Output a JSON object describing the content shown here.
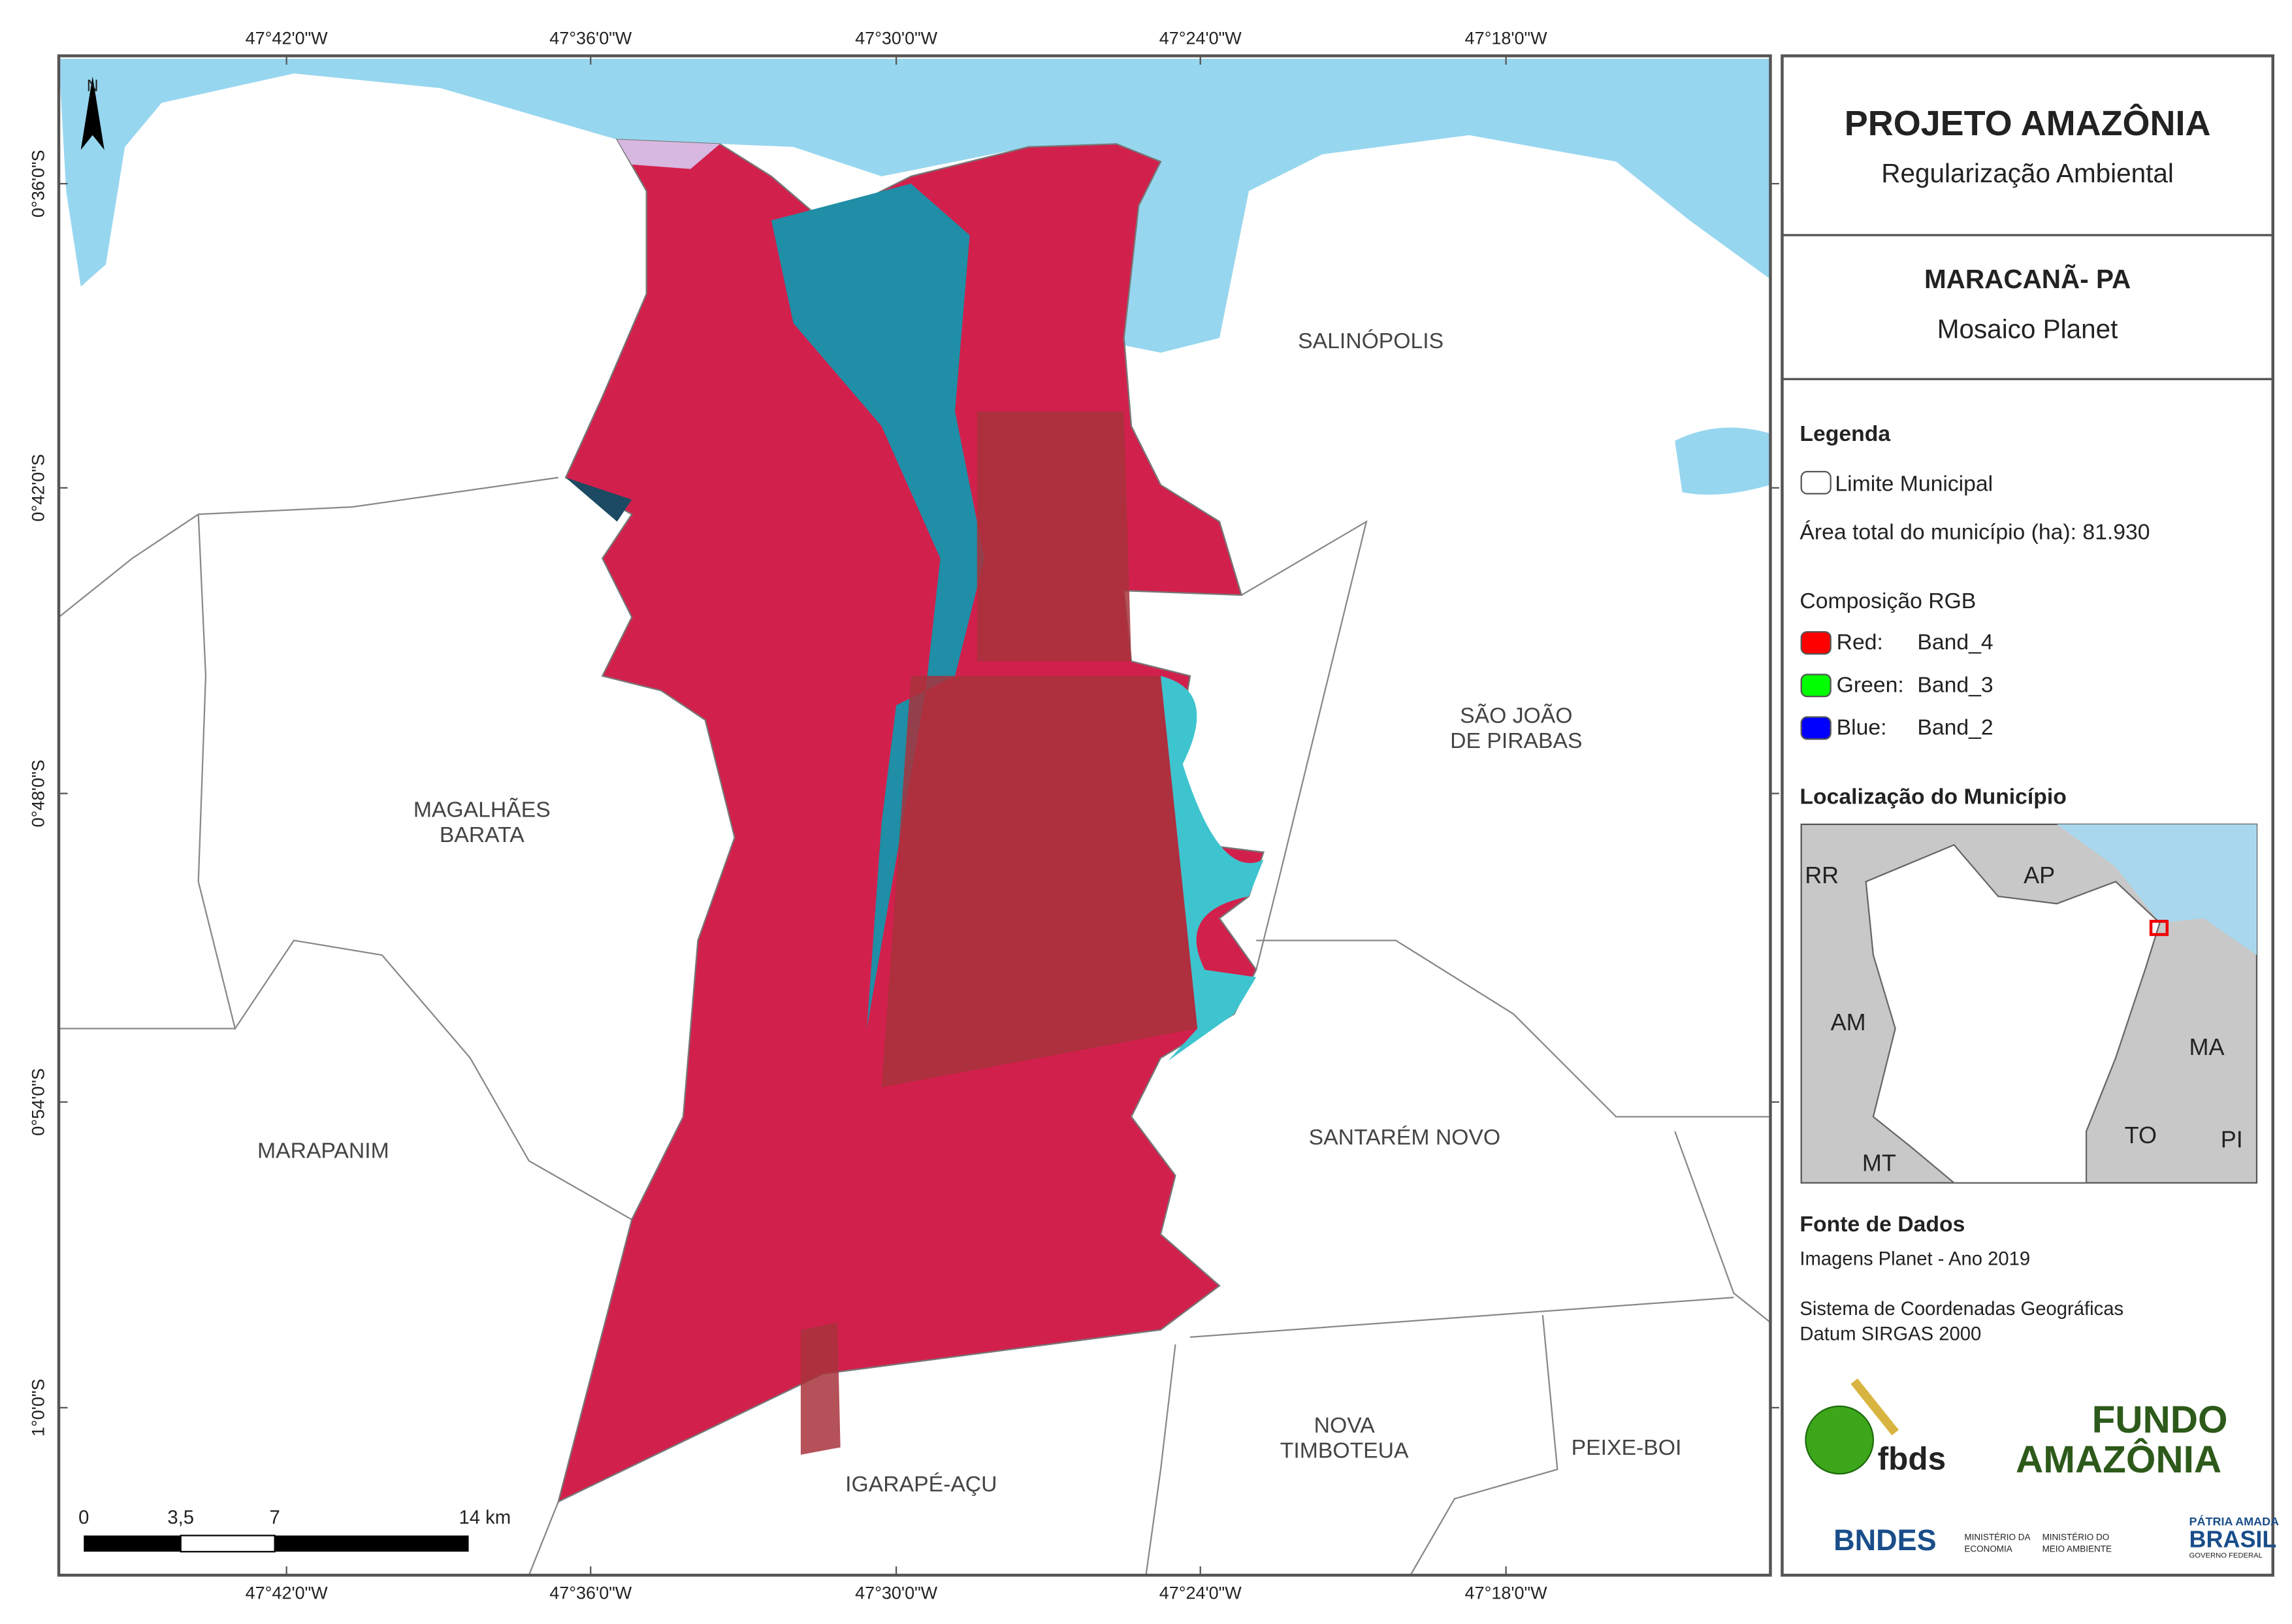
{
  "map": {
    "top_labels": [
      "47°42'0\"W",
      "47°36'0\"W",
      "47°30'0\"W",
      "47°24'0\"W",
      "47°18'0\"W"
    ],
    "left_labels": [
      "0°36'0\"S",
      "0°42'0\"S",
      "0°48'0\"S",
      "0°54'0\"S",
      "1°0'0\"S"
    ],
    "north": "N",
    "municipalities": [
      {
        "lines": [
          "SALINÓPOLIS"
        ]
      },
      {
        "lines": [
          "SÃO JOÃO",
          "DE PIRABAS"
        ]
      },
      {
        "lines": [
          "MAGALHÃES",
          "BARATA"
        ]
      },
      {
        "lines": [
          "MARAPANIM"
        ]
      },
      {
        "lines": [
          "SANTARÉM NOVO"
        ]
      },
      {
        "lines": [
          "IGARAPÉ-AÇU"
        ]
      },
      {
        "lines": [
          "NOVA",
          "TIMBOTEUA"
        ]
      },
      {
        "lines": [
          "PEIXE-BOI"
        ]
      }
    ],
    "scale_labels": [
      "0",
      "3,5",
      "7",
      "14 km"
    ]
  },
  "panel": {
    "title": "PROJETO AMAZÔNIA",
    "subtitle": "Regularização Ambiental",
    "place": "MARACANÃ- PA",
    "product": "Mosaico Planet",
    "legend_title": "Legenda",
    "limit": "Limite Municipal",
    "area": "Área total do município (ha): 81.930",
    "rgb_title": "Composição RGB",
    "bands": [
      {
        "label": "Red:",
        "band": "Band_4"
      },
      {
        "label": "Green:",
        "band": "Band_3"
      },
      {
        "label": "Blue:",
        "band": "Band_2"
      }
    ],
    "location_title": "Localização do Município",
    "states": [
      "RR",
      "AP",
      "AM",
      "MA",
      "TO",
      "MT",
      "PI"
    ],
    "source_title": "Fonte de Dados",
    "source_lines": [
      "Imagens Planet - Ano 2019",
      "Sistema de Coordenadas Geográficas",
      "Datum SIRGAS 2000"
    ]
  },
  "logos": {
    "fbds": "fbds",
    "fundo": "FUNDO",
    "amazonia": "AMAZÔNIA",
    "bndes": "BNDES",
    "min1": [
      "MINISTÉRIO DA",
      "ECONOMIA"
    ],
    "min2": [
      "MINISTÉRIO DO",
      "MEIO AMBIENTE"
    ],
    "patria": "PÁTRIA AMADA",
    "brasil": "BRASIL",
    "gov": "GOVERNO FEDERAL"
  }
}
